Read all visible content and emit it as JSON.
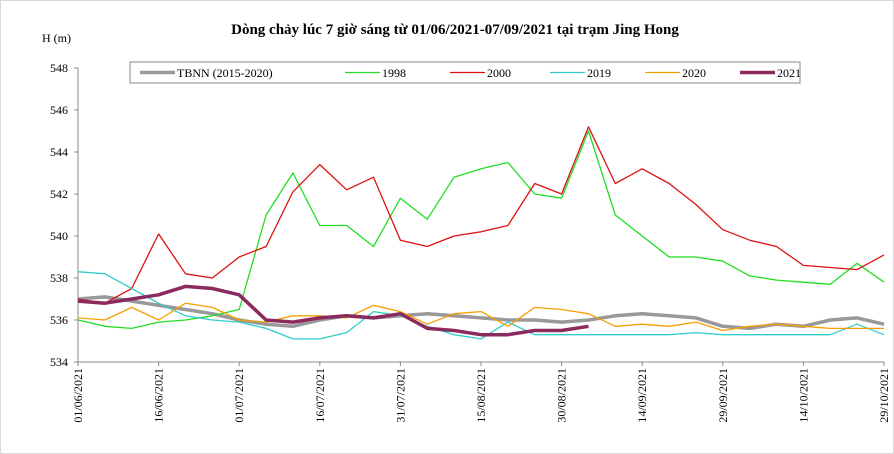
{
  "chart_data": {
    "type": "line",
    "title": "Dòng chảy lúc 7 giờ sáng từ 01/06/2021-07/09/2021 tại trạm Jing Hong",
    "y_label": "H (m)",
    "x": [
      "01/06/2021",
      "06/06/2021",
      "11/06/2021",
      "16/06/2021",
      "21/06/2021",
      "26/06/2021",
      "01/07/2021",
      "06/07/2021",
      "11/07/2021",
      "16/07/2021",
      "21/07/2021",
      "26/07/2021",
      "31/07/2021",
      "05/08/2021",
      "10/08/2021",
      "15/08/2021",
      "20/08/2021",
      "25/08/2021",
      "30/08/2021",
      "04/09/2021",
      "09/09/2021",
      "14/09/2021",
      "19/09/2021",
      "24/09/2021",
      "29/09/2021",
      "04/10/2021",
      "09/10/2021",
      "14/10/2021",
      "19/10/2021",
      "24/10/2021",
      "29/10/2021"
    ],
    "xlim": [
      "01/06/2021",
      "29/10/2021"
    ],
    "xticks": [
      "01/06/2021",
      "16/06/2021",
      "01/07/2021",
      "16/07/2021",
      "31/07/2021",
      "15/08/2021",
      "30/08/2021",
      "14/09/2021",
      "29/09/2021",
      "14/10/2021",
      "29/10/2021"
    ],
    "ylim": [
      534,
      548
    ],
    "yticks": [
      534,
      536,
      538,
      540,
      542,
      544,
      546,
      548
    ],
    "legend": "top",
    "series": [
      {
        "name": "TBNN (2015-2020)",
        "color": "#999999",
        "line_width": 3.5,
        "values": [
          537.0,
          537.1,
          536.9,
          536.7,
          536.5,
          536.3,
          536.0,
          535.8,
          535.7,
          536.0,
          536.2,
          536.1,
          536.2,
          536.3,
          536.2,
          536.1,
          536.0,
          536.0,
          535.9,
          536.0,
          536.2,
          536.3,
          536.2,
          536.1,
          535.7,
          535.6,
          535.8,
          535.7,
          536.0,
          536.1,
          535.8
        ]
      },
      {
        "name": "1998",
        "color": "#22dd22",
        "line_width": 1.3,
        "values": [
          536.0,
          535.7,
          535.6,
          535.9,
          536.0,
          536.2,
          536.5,
          541.0,
          543.0,
          540.5,
          540.5,
          539.5,
          541.8,
          540.8,
          542.8,
          543.2,
          543.5,
          542.0,
          541.8,
          545.0,
          541.0,
          540.0,
          539.0,
          539.0,
          538.8,
          538.1,
          537.9,
          537.8,
          537.7,
          538.7,
          537.8
        ]
      },
      {
        "name": "2000",
        "color": "#dd1111",
        "line_width": 1.3,
        "values": [
          537.0,
          536.8,
          537.5,
          540.1,
          538.2,
          538.0,
          539.0,
          539.5,
          542.1,
          543.4,
          542.2,
          542.8,
          539.8,
          539.5,
          540.0,
          540.2,
          540.5,
          542.5,
          542.0,
          545.2,
          542.5,
          543.2,
          542.5,
          541.5,
          540.3,
          539.8,
          539.5,
          538.6,
          538.5,
          538.4,
          539.1
        ]
      },
      {
        "name": "2019",
        "color": "#33cccc",
        "line_width": 1.3,
        "values": [
          538.3,
          538.2,
          537.5,
          536.8,
          536.2,
          536.0,
          535.9,
          535.6,
          535.1,
          535.1,
          535.4,
          536.4,
          536.2,
          535.7,
          535.3,
          535.1,
          535.9,
          535.3,
          535.3,
          535.3,
          535.3,
          535.3,
          535.3,
          535.4,
          535.3,
          535.3,
          535.3,
          535.3,
          535.3,
          535.8,
          535.3
        ]
      },
      {
        "name": "2020",
        "color": "#f5a000",
        "line_width": 1.3,
        "values": [
          536.1,
          536.0,
          536.6,
          536.0,
          536.8,
          536.6,
          536.0,
          535.9,
          536.2,
          536.2,
          536.1,
          536.7,
          536.4,
          535.8,
          536.3,
          536.4,
          535.7,
          536.6,
          536.5,
          536.3,
          535.7,
          535.8,
          535.7,
          535.9,
          535.5,
          535.7,
          535.8,
          535.7,
          535.6,
          535.6,
          535.6
        ]
      },
      {
        "name": "2021",
        "color": "#8b2a5e",
        "line_width": 3.5,
        "values": [
          536.9,
          536.8,
          537.0,
          537.2,
          537.6,
          537.5,
          537.2,
          536.0,
          535.9,
          536.1,
          536.2,
          536.1,
          536.3,
          535.6,
          535.5,
          535.3,
          535.3,
          535.5,
          535.5,
          535.7,
          null,
          null,
          null,
          null,
          null,
          null,
          null,
          null,
          null,
          null,
          null
        ]
      }
    ]
  }
}
